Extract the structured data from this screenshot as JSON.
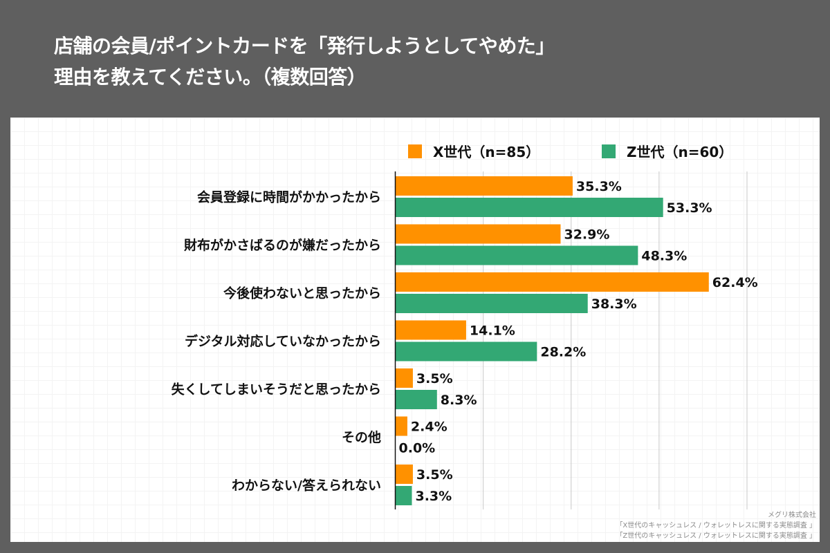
{
  "title": {
    "line1": "店舗の会員/ポイントカードを「発行しようとしてやめた」",
    "line2": "理由を教えてください。（複数回答）"
  },
  "colors": {
    "background": "#5f5f5f",
    "panel": "#ffffff",
    "x_generation": "#ff9100",
    "z_generation": "#33a874",
    "gridline": "#c8c8c8",
    "axis": "#111111"
  },
  "source": {
    "company": "メグリ株式会社",
    "survey_x": "「X世代のキャッシュレス / ウォレットレスに関する実態調査 」",
    "survey_z": "「Z世代のキャッシュレス / ウォレットレスに関する実態調査 」"
  },
  "chart_data": {
    "type": "bar",
    "orientation": "horizontal",
    "title": "店舗の会員/ポイントカードを「発行しようとしてやめた」理由を教えてください。（複数回答）",
    "xlabel": "",
    "ylabel": "",
    "xlim": [
      0,
      70
    ],
    "grid_step": 17.5,
    "grid": true,
    "legend_position": "top-right",
    "value_suffix": "%",
    "categories": [
      "会員登録に時間がかかったから",
      "財布がかさばるのが嫌だったから",
      "今後使わないと思ったから",
      "デジタル対応していなかったから",
      "失くしてしまいそうだと思ったから",
      "その他",
      "わからない/答えられない"
    ],
    "series": [
      {
        "name": "X世代（n=85）",
        "color": "#ff9100",
        "values": [
          35.3,
          32.9,
          62.4,
          14.1,
          3.5,
          2.4,
          3.5
        ],
        "labels": [
          "35.3%",
          "32.9%",
          "62.4%",
          "14.1%",
          "3.5%",
          "2.4%",
          "3.5%"
        ]
      },
      {
        "name": "Z世代（n=60）",
        "color": "#33a874",
        "values": [
          53.3,
          48.3,
          38.3,
          28.2,
          8.3,
          0.0,
          3.3
        ],
        "labels": [
          "53.3%",
          "48.3%",
          "38.3%",
          "28.2%",
          "8.3%",
          "0.0%",
          "3.3%"
        ]
      }
    ]
  }
}
